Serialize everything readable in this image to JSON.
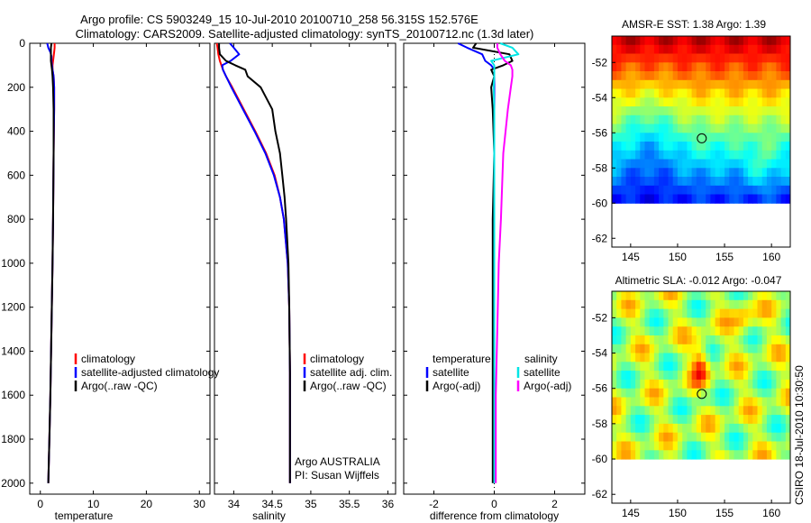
{
  "header": {
    "title_line1": "Argo profile: CS 5903249_15 10-Jul-2010 20100710_258 56.315S 152.576E",
    "title_line2": "Climatology: CARS2009. Satellite-adjusted climatology: synTS_20100712.nc (1.3d later)"
  },
  "depth_ticks": [
    0,
    200,
    400,
    600,
    800,
    1000,
    1200,
    1400,
    1600,
    1800,
    2000
  ],
  "depth_range": [
    0,
    2050
  ],
  "colors": {
    "climatology": "#ff0000",
    "satellite": "#0000ff",
    "argo": "#000000",
    "salinity_satellite": "#00e5e5",
    "salinity_argo": "#ff00ff"
  },
  "chart_data": [
    {
      "type": "line",
      "id": "temperature",
      "xlabel": "temperature",
      "xlim": [
        -2,
        32
      ],
      "xticks": [
        0,
        10,
        20,
        30
      ],
      "depth": [
        0,
        20,
        40,
        60,
        80,
        100,
        120,
        150,
        200,
        300,
        500,
        800,
        1000,
        1300,
        1600,
        1800,
        2000
      ],
      "series": [
        {
          "name": "climatology",
          "color": "#ff0000",
          "x": [
            2.7,
            2.7,
            2.6,
            2.5,
            2.4,
            2.3,
            2.3,
            2.5,
            2.6,
            2.6,
            2.5,
            2.4,
            2.3,
            2.1,
            1.9,
            1.7,
            1.5
          ]
        },
        {
          "name": "satellite-adjusted climatology",
          "color": "#0000ff",
          "x": [
            1.3,
            1.5,
            1.9,
            2.1,
            2.1,
            2.2,
            2.3,
            2.5,
            2.6,
            2.6,
            2.5,
            2.4,
            2.3,
            2.1,
            1.9,
            1.7,
            1.5
          ]
        },
        {
          "name": "Argo(..raw -QC)",
          "color": "#000000",
          "x": [
            2.1,
            2.0,
            2.0,
            2.0,
            2.0,
            2.1,
            2.2,
            2.3,
            2.4,
            2.5,
            2.5,
            2.4,
            2.3,
            2.1,
            1.9,
            1.7,
            1.5
          ]
        }
      ],
      "legend": [
        "climatology",
        "satellite-adjusted climatology",
        "Argo(..raw -QC)"
      ]
    },
    {
      "type": "line",
      "id": "salinity",
      "xlabel": "salinity",
      "xlim": [
        33.75,
        36.1
      ],
      "xticks": [
        34,
        34.5,
        35,
        35.5,
        36
      ],
      "xtick_labels": [
        "34",
        "34.5",
        "35",
        "35.5",
        "36"
      ],
      "depth": [
        0,
        20,
        50,
        80,
        100,
        120,
        150,
        200,
        300,
        400,
        500,
        600,
        700,
        800,
        1000,
        1200,
        1500,
        1800,
        2000
      ],
      "series": [
        {
          "name": "climatology",
          "color": "#ff0000",
          "x": [
            33.78,
            33.79,
            33.8,
            33.82,
            33.84,
            33.86,
            33.9,
            33.98,
            34.13,
            34.28,
            34.42,
            34.53,
            34.6,
            34.65,
            34.7,
            34.72,
            34.73,
            34.73,
            34.73
          ]
        },
        {
          "name": "satellite adj. clim.",
          "color": "#0000ff",
          "x": [
            33.95,
            34.0,
            34.07,
            33.96,
            33.85,
            33.86,
            33.9,
            33.97,
            34.12,
            34.27,
            34.41,
            34.52,
            34.6,
            34.65,
            34.7,
            34.72,
            34.73,
            34.73,
            34.73
          ]
        },
        {
          "name": "Argo(..raw -QC)",
          "color": "#000000",
          "x": [
            33.81,
            33.81,
            33.82,
            33.9,
            34.02,
            34.15,
            34.18,
            34.35,
            34.5,
            34.54,
            34.6,
            34.63,
            34.66,
            34.68,
            34.71,
            34.72,
            34.73,
            34.73,
            34.73
          ]
        }
      ],
      "legend": [
        "climatology",
        "satellite adj. clim.",
        "Argo(..raw -QC)"
      ],
      "annotation": [
        "Argo AUSTRALIA",
        "PI: Susan Wijffels"
      ]
    },
    {
      "type": "line",
      "id": "difference",
      "xlabel": "difference from climatology",
      "xlim": [
        -3.0,
        3.0
      ],
      "xticks": [
        -2,
        0,
        2
      ],
      "depth": [
        0,
        20,
        50,
        80,
        100,
        120,
        150,
        200,
        300,
        500,
        800,
        1000,
        1300,
        1600,
        1800,
        2000
      ],
      "series": [
        {
          "name": "temperature satellite",
          "color": "#0000ff",
          "x": [
            -1.2,
            -0.9,
            -0.4,
            -0.3,
            -0.1,
            0,
            0,
            0,
            0,
            0,
            0,
            0,
            0,
            0,
            0,
            0
          ]
        },
        {
          "name": "temperature Argo(-adj)",
          "color": "#000000",
          "x": [
            -0.6,
            -0.7,
            0.5,
            0.6,
            0.3,
            -0.1,
            0,
            -0.1,
            -0.05,
            0,
            -0.05,
            -0.05,
            -0.05,
            -0.05,
            -0.05,
            -0.05
          ]
        },
        {
          "name": "salinity satellite",
          "color": "#00e5e5",
          "x": [
            0.2,
            0.6,
            0.8,
            -0.1,
            0.0,
            0.0,
            0.0,
            -0.02,
            0,
            0,
            0,
            0,
            0,
            0,
            0,
            0
          ]
        },
        {
          "name": "salinity Argo(-adj)",
          "color": "#ff00ff",
          "x": [
            0.1,
            0.1,
            0.2,
            0.35,
            0.55,
            0.6,
            0.6,
            0.55,
            0.45,
            0.3,
            0.22,
            0.15,
            0.1,
            0.05,
            0.05,
            0.05
          ]
        }
      ],
      "legend_headings": [
        "temperature",
        "salinity"
      ],
      "legend_left": [
        "satellite",
        "Argo(-adj)"
      ],
      "legend_right": [
        "satellite",
        "Argo(-adj)"
      ]
    },
    {
      "type": "heatmap",
      "id": "sst_map",
      "title": "AMSR-E SST: 1.38 Argo: 1.39",
      "xlim": [
        143,
        162
      ],
      "ylim": [
        -62.5,
        -50.5
      ],
      "xticks": [
        145,
        150,
        155,
        160
      ],
      "yticks": [
        -52,
        -54,
        -56,
        -58,
        -60,
        -62
      ],
      "data_extent_lat": [
        -60,
        -50.5
      ],
      "argo_position": {
        "lon": 152.576,
        "lat": -56.315
      }
    },
    {
      "type": "heatmap",
      "id": "sla_map",
      "title": "Altimetric SLA: -0.012 Argo: -0.047",
      "xlim": [
        143,
        162
      ],
      "ylim": [
        -62.5,
        -50.5
      ],
      "xticks": [
        145,
        150,
        155,
        160
      ],
      "yticks": [
        -52,
        -54,
        -56,
        -58,
        -60,
        -62
      ],
      "data_extent_lat": [
        -60,
        -50.5
      ],
      "argo_position": {
        "lon": 152.576,
        "lat": -56.315
      }
    }
  ],
  "footer": {
    "credit": "CSIRO 18-Jul-2010 10:30:50"
  }
}
